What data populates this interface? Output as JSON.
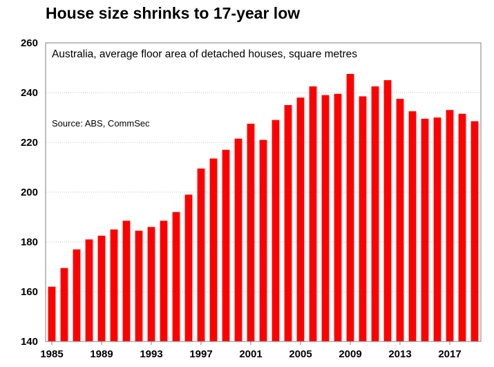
{
  "chart_data": {
    "type": "bar",
    "title": "House size shrinks to 17-year low",
    "subtitle": "Australia, average floor area of detached houses, square metres",
    "source": "Source: ABS, CommSec",
    "xlabel": "",
    "ylabel": "",
    "ylim": [
      140,
      260
    ],
    "yticks": [
      140,
      160,
      180,
      200,
      220,
      240,
      260
    ],
    "xtick_labels": [
      "1985",
      "1989",
      "1993",
      "1997",
      "2001",
      "2005",
      "2009",
      "2013",
      "2017"
    ],
    "grid": true,
    "bar_color": "#ff0000",
    "categories": [
      "1985",
      "1986",
      "1987",
      "1988",
      "1989",
      "1990",
      "1991",
      "1992",
      "1993",
      "1994",
      "1995",
      "1996",
      "1997",
      "1998",
      "1999",
      "2000",
      "2001",
      "2002",
      "2003",
      "2004",
      "2005",
      "2006",
      "2007",
      "2008",
      "2009",
      "2010",
      "2011",
      "2012",
      "2013",
      "2014",
      "2015",
      "2016",
      "2017",
      "2018",
      "2019"
    ],
    "values": [
      162,
      169.5,
      177,
      181,
      182.5,
      185,
      188.5,
      184.5,
      186,
      188.5,
      192,
      199,
      209.5,
      213.5,
      217,
      221.5,
      227.5,
      221,
      229,
      235,
      238,
      242.5,
      239,
      239.5,
      247.5,
      238.5,
      242.5,
      245,
      237.5,
      232.5,
      229.5,
      230,
      233,
      231.5,
      228.5
    ]
  }
}
